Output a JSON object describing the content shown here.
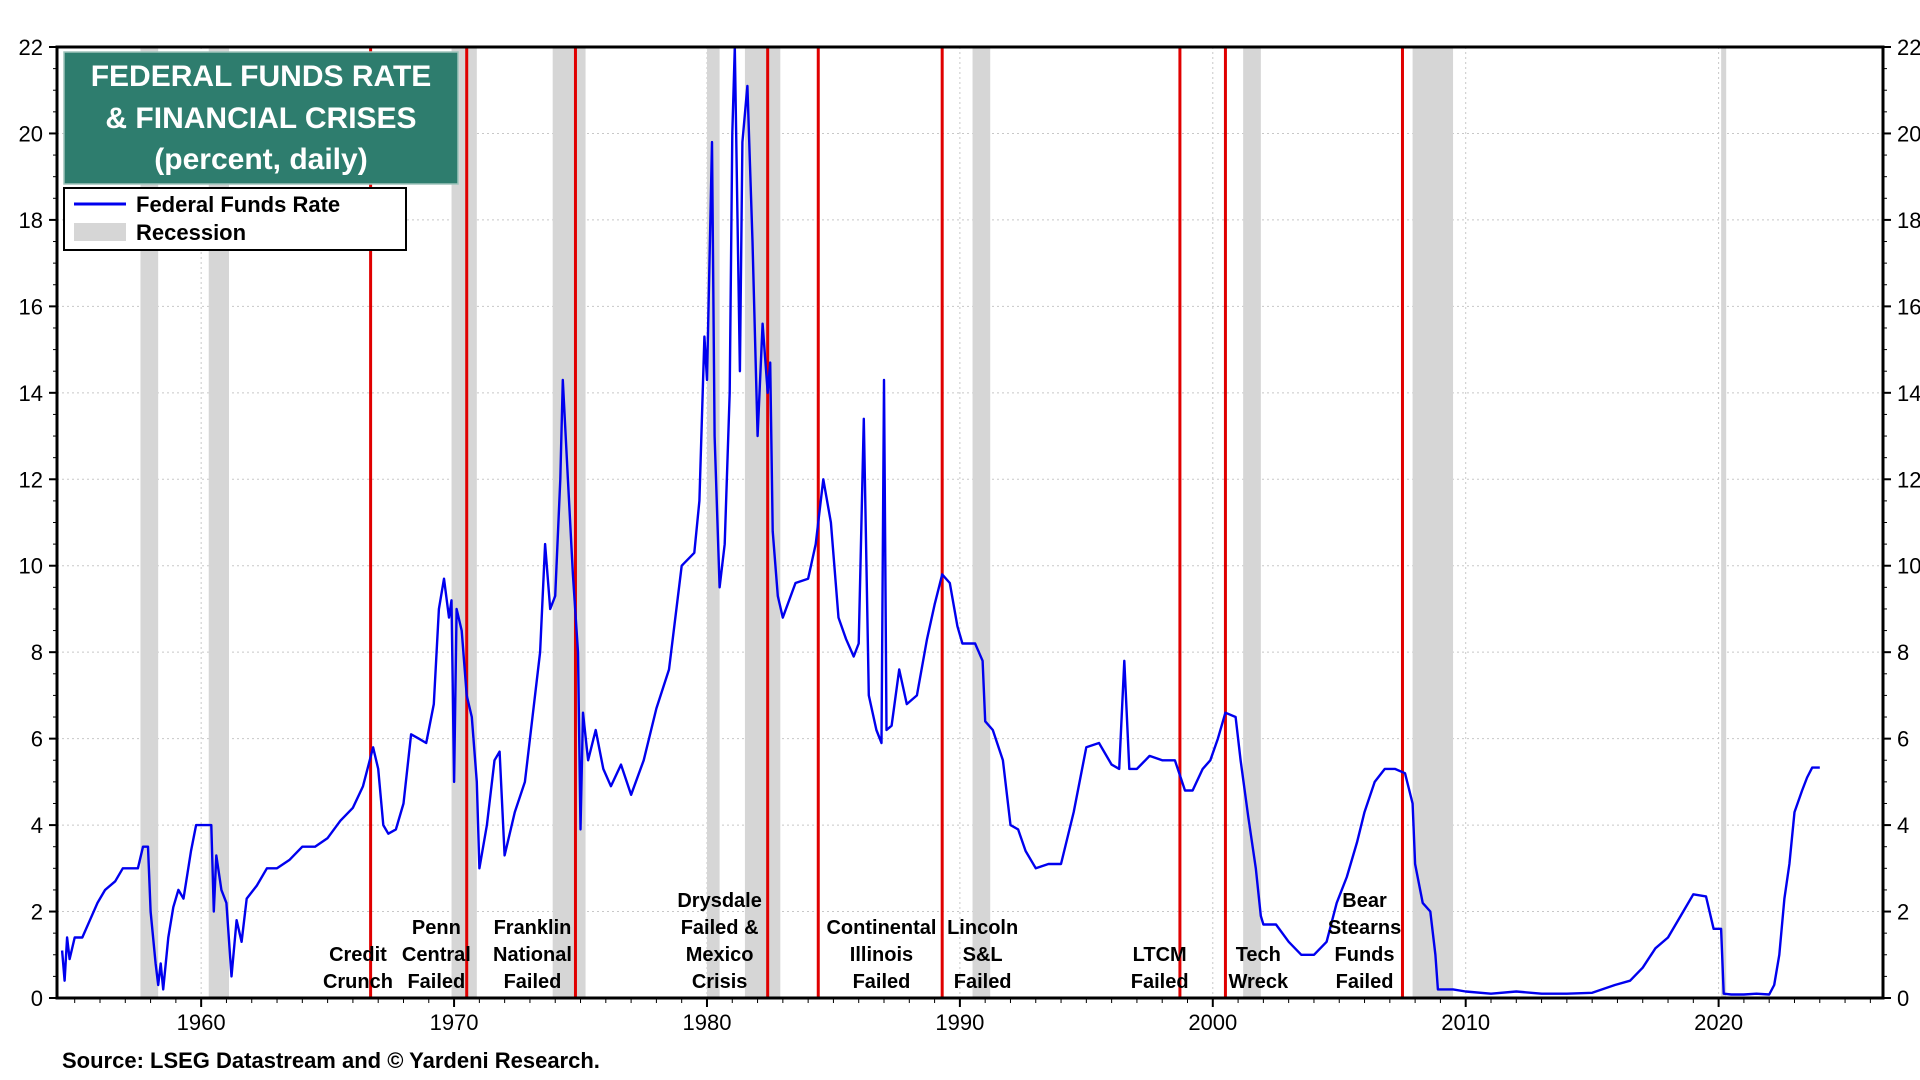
{
  "chart_data": {
    "type": "line",
    "title": [
      "FEDERAL FUNDS RATE",
      "& FINANCIAL CRISES",
      "(percent, daily)"
    ],
    "source": "Source: LSEG Datastream and © Yardeni Research.",
    "xlim": [
      1954.3,
      2026.5
    ],
    "ylim": [
      0,
      22
    ],
    "x_ticks": [
      1960,
      1970,
      1980,
      1990,
      2000,
      2010,
      2020
    ],
    "y_ticks": [
      0,
      2,
      4,
      6,
      8,
      10,
      12,
      14,
      16,
      18,
      20,
      22
    ],
    "grid": true,
    "legend_position": "top-left",
    "colors": {
      "series": "#0000ee",
      "recession": "#d6d6d6",
      "crisis_line": "#e00000",
      "title_bg": "#2e7d6e"
    },
    "legend": [
      {
        "name": "Federal Funds Rate",
        "swatch": "line"
      },
      {
        "name": "Recession",
        "swatch": "band"
      }
    ],
    "recessions": [
      [
        1957.6,
        1958.3
      ],
      [
        1960.3,
        1961.1
      ],
      [
        1969.9,
        1970.9
      ],
      [
        1973.9,
        1975.2
      ],
      [
        1980.0,
        1980.5
      ],
      [
        1981.5,
        1982.9
      ],
      [
        1990.5,
        1991.2
      ],
      [
        2001.2,
        2001.9
      ],
      [
        2007.9,
        2009.5
      ],
      [
        2020.1,
        2020.3
      ]
    ],
    "crises": [
      {
        "x": 1966.7,
        "lines": [
          "Credit",
          "Crunch"
        ]
      },
      {
        "x": 1970.5,
        "lines": [
          "Penn",
          "Central",
          "Failed"
        ]
      },
      {
        "x": 1974.8,
        "lines": [
          "Franklin",
          "National",
          "Failed"
        ]
      },
      {
        "x": 1982.4,
        "lines": [
          "Drysdale",
          "Failed &",
          "Mexico",
          "Crisis"
        ]
      },
      {
        "x": 1984.4,
        "lines": [
          "Continental",
          "Illinois",
          "Failed"
        ]
      },
      {
        "x": 1989.3,
        "lines": [
          "Lincoln",
          "S&L",
          "Failed"
        ]
      },
      {
        "x": 1998.7,
        "lines": [
          "LTCM",
          "Failed"
        ]
      },
      {
        "x": 2000.5,
        "lines": [
          "Tech",
          "Wreck"
        ]
      },
      {
        "x": 2007.5,
        "lines": [
          "Bear",
          "Stearns",
          "Funds",
          "Failed"
        ]
      }
    ],
    "series": [
      {
        "name": "Federal Funds Rate",
        "points": [
          [
            1954.5,
            1.1
          ],
          [
            1954.6,
            0.4
          ],
          [
            1954.7,
            1.4
          ],
          [
            1954.8,
            0.9
          ],
          [
            1955.0,
            1.4
          ],
          [
            1955.3,
            1.4
          ],
          [
            1955.6,
            1.8
          ],
          [
            1955.9,
            2.2
          ],
          [
            1956.2,
            2.5
          ],
          [
            1956.6,
            2.7
          ],
          [
            1956.9,
            3.0
          ],
          [
            1957.5,
            3.0
          ],
          [
            1957.7,
            3.5
          ],
          [
            1957.9,
            3.5
          ],
          [
            1958.0,
            2.0
          ],
          [
            1958.2,
            0.8
          ],
          [
            1958.3,
            0.3
          ],
          [
            1958.4,
            0.8
          ],
          [
            1958.5,
            0.2
          ],
          [
            1958.7,
            1.4
          ],
          [
            1958.9,
            2.1
          ],
          [
            1959.1,
            2.5
          ],
          [
            1959.3,
            2.3
          ],
          [
            1959.6,
            3.4
          ],
          [
            1959.8,
            4.0
          ],
          [
            1960.0,
            4.0
          ],
          [
            1960.4,
            4.0
          ],
          [
            1960.5,
            2.0
          ],
          [
            1960.6,
            3.3
          ],
          [
            1960.8,
            2.5
          ],
          [
            1961.0,
            2.2
          ],
          [
            1961.2,
            0.5
          ],
          [
            1961.4,
            1.8
          ],
          [
            1961.6,
            1.3
          ],
          [
            1961.8,
            2.3
          ],
          [
            1962.2,
            2.6
          ],
          [
            1962.6,
            3.0
          ],
          [
            1963.0,
            3.0
          ],
          [
            1963.5,
            3.2
          ],
          [
            1964.0,
            3.5
          ],
          [
            1964.5,
            3.5
          ],
          [
            1965.0,
            3.7
          ],
          [
            1965.5,
            4.1
          ],
          [
            1966.0,
            4.4
          ],
          [
            1966.4,
            4.9
          ],
          [
            1966.8,
            5.8
          ],
          [
            1967.0,
            5.3
          ],
          [
            1967.2,
            4.0
          ],
          [
            1967.4,
            3.8
          ],
          [
            1967.7,
            3.9
          ],
          [
            1968.0,
            4.5
          ],
          [
            1968.3,
            6.1
          ],
          [
            1968.6,
            6.0
          ],
          [
            1968.9,
            5.9
          ],
          [
            1969.2,
            6.8
          ],
          [
            1969.4,
            9.0
          ],
          [
            1969.6,
            9.7
          ],
          [
            1969.8,
            8.8
          ],
          [
            1969.9,
            9.2
          ],
          [
            1970.0,
            5.0
          ],
          [
            1970.1,
            9.0
          ],
          [
            1970.3,
            8.5
          ],
          [
            1970.5,
            7.0
          ],
          [
            1970.7,
            6.5
          ],
          [
            1970.9,
            5.0
          ],
          [
            1971.0,
            3.0
          ],
          [
            1971.3,
            4.0
          ],
          [
            1971.6,
            5.5
          ],
          [
            1971.8,
            5.7
          ],
          [
            1972.0,
            3.3
          ],
          [
            1972.4,
            4.3
          ],
          [
            1972.8,
            5.0
          ],
          [
            1973.1,
            6.5
          ],
          [
            1973.4,
            8.0
          ],
          [
            1973.6,
            10.5
          ],
          [
            1973.8,
            9.0
          ],
          [
            1974.0,
            9.3
          ],
          [
            1974.2,
            12.0
          ],
          [
            1974.3,
            14.3
          ],
          [
            1974.5,
            12.0
          ],
          [
            1974.7,
            9.8
          ],
          [
            1974.9,
            8.0
          ],
          [
            1975.0,
            3.9
          ],
          [
            1975.1,
            6.6
          ],
          [
            1975.3,
            5.5
          ],
          [
            1975.6,
            6.2
          ],
          [
            1975.9,
            5.3
          ],
          [
            1976.2,
            4.9
          ],
          [
            1976.6,
            5.4
          ],
          [
            1977.0,
            4.7
          ],
          [
            1977.5,
            5.5
          ],
          [
            1978.0,
            6.7
          ],
          [
            1978.5,
            7.6
          ],
          [
            1979.0,
            10.0
          ],
          [
            1979.5,
            10.3
          ],
          [
            1979.7,
            11.5
          ],
          [
            1979.9,
            15.3
          ],
          [
            1980.0,
            14.3
          ],
          [
            1980.2,
            19.8
          ],
          [
            1980.3,
            13.0
          ],
          [
            1980.5,
            9.5
          ],
          [
            1980.7,
            10.5
          ],
          [
            1980.9,
            14.0
          ],
          [
            1981.0,
            20.0
          ],
          [
            1981.1,
            22.0
          ],
          [
            1981.3,
            14.5
          ],
          [
            1981.4,
            19.8
          ],
          [
            1981.6,
            21.1
          ],
          [
            1981.8,
            17.5
          ],
          [
            1982.0,
            13.0
          ],
          [
            1982.2,
            15.6
          ],
          [
            1982.4,
            14.0
          ],
          [
            1982.5,
            14.7
          ],
          [
            1982.6,
            10.8
          ],
          [
            1982.8,
            9.3
          ],
          [
            1983.0,
            8.8
          ],
          [
            1983.5,
            9.6
          ],
          [
            1984.0,
            9.7
          ],
          [
            1984.3,
            10.5
          ],
          [
            1984.6,
            12.0
          ],
          [
            1984.9,
            11.0
          ],
          [
            1985.2,
            8.8
          ],
          [
            1985.5,
            8.3
          ],
          [
            1985.8,
            7.9
          ],
          [
            1986.0,
            8.2
          ],
          [
            1986.2,
            13.4
          ],
          [
            1986.4,
            7.0
          ],
          [
            1986.7,
            6.2
          ],
          [
            1986.9,
            5.9
          ],
          [
            1987.0,
            14.3
          ],
          [
            1987.1,
            6.2
          ],
          [
            1987.3,
            6.3
          ],
          [
            1987.6,
            7.6
          ],
          [
            1987.9,
            6.8
          ],
          [
            1988.3,
            7.0
          ],
          [
            1988.7,
            8.3
          ],
          [
            1989.0,
            9.1
          ],
          [
            1989.3,
            9.8
          ],
          [
            1989.6,
            9.6
          ],
          [
            1989.9,
            8.6
          ],
          [
            1990.1,
            8.2
          ],
          [
            1990.6,
            8.2
          ],
          [
            1990.9,
            7.8
          ],
          [
            1991.0,
            6.4
          ],
          [
            1991.3,
            6.2
          ],
          [
            1991.7,
            5.5
          ],
          [
            1992.0,
            4.0
          ],
          [
            1992.3,
            3.9
          ],
          [
            1992.6,
            3.4
          ],
          [
            1993.0,
            3.0
          ],
          [
            1993.5,
            3.1
          ],
          [
            1994.0,
            3.1
          ],
          [
            1994.5,
            4.3
          ],
          [
            1995.0,
            5.8
          ],
          [
            1995.5,
            5.9
          ],
          [
            1996.0,
            5.4
          ],
          [
            1996.3,
            5.3
          ],
          [
            1996.5,
            7.8
          ],
          [
            1996.7,
            5.3
          ],
          [
            1997.0,
            5.3
          ],
          [
            1997.5,
            5.6
          ],
          [
            1998.0,
            5.5
          ],
          [
            1998.5,
            5.5
          ],
          [
            1998.9,
            4.8
          ],
          [
            1999.2,
            4.8
          ],
          [
            1999.6,
            5.3
          ],
          [
            1999.9,
            5.5
          ],
          [
            2000.2,
            6.0
          ],
          [
            2000.5,
            6.6
          ],
          [
            2000.9,
            6.5
          ],
          [
            2001.1,
            5.5
          ],
          [
            2001.4,
            4.2
          ],
          [
            2001.7,
            3.0
          ],
          [
            2001.9,
            1.9
          ],
          [
            2002.0,
            1.7
          ],
          [
            2002.5,
            1.7
          ],
          [
            2003.0,
            1.3
          ],
          [
            2003.5,
            1.0
          ],
          [
            2004.0,
            1.0
          ],
          [
            2004.5,
            1.3
          ],
          [
            2004.9,
            2.2
          ],
          [
            2005.3,
            2.8
          ],
          [
            2005.7,
            3.6
          ],
          [
            2006.0,
            4.3
          ],
          [
            2006.4,
            5.0
          ],
          [
            2006.8,
            5.3
          ],
          [
            2007.2,
            5.3
          ],
          [
            2007.6,
            5.2
          ],
          [
            2007.9,
            4.5
          ],
          [
            2008.0,
            3.1
          ],
          [
            2008.3,
            2.2
          ],
          [
            2008.6,
            2.0
          ],
          [
            2008.8,
            1.0
          ],
          [
            2008.9,
            0.2
          ],
          [
            2009.5,
            0.2
          ],
          [
            2010.0,
            0.15
          ],
          [
            2011.0,
            0.1
          ],
          [
            2012.0,
            0.15
          ],
          [
            2013.0,
            0.1
          ],
          [
            2014.0,
            0.1
          ],
          [
            2015.0,
            0.12
          ],
          [
            2015.9,
            0.3
          ],
          [
            2016.5,
            0.4
          ],
          [
            2017.0,
            0.7
          ],
          [
            2017.5,
            1.15
          ],
          [
            2018.0,
            1.4
          ],
          [
            2018.5,
            1.9
          ],
          [
            2019.0,
            2.4
          ],
          [
            2019.5,
            2.35
          ],
          [
            2019.8,
            1.6
          ],
          [
            2020.1,
            1.6
          ],
          [
            2020.2,
            0.1
          ],
          [
            2020.5,
            0.08
          ],
          [
            2021.0,
            0.08
          ],
          [
            2021.5,
            0.1
          ],
          [
            2022.0,
            0.08
          ],
          [
            2022.2,
            0.3
          ],
          [
            2022.4,
            1.0
          ],
          [
            2022.6,
            2.3
          ],
          [
            2022.8,
            3.1
          ],
          [
            2023.0,
            4.3
          ],
          [
            2023.3,
            4.8
          ],
          [
            2023.5,
            5.1
          ],
          [
            2023.7,
            5.33
          ],
          [
            2024.0,
            5.33
          ]
        ]
      }
    ]
  }
}
